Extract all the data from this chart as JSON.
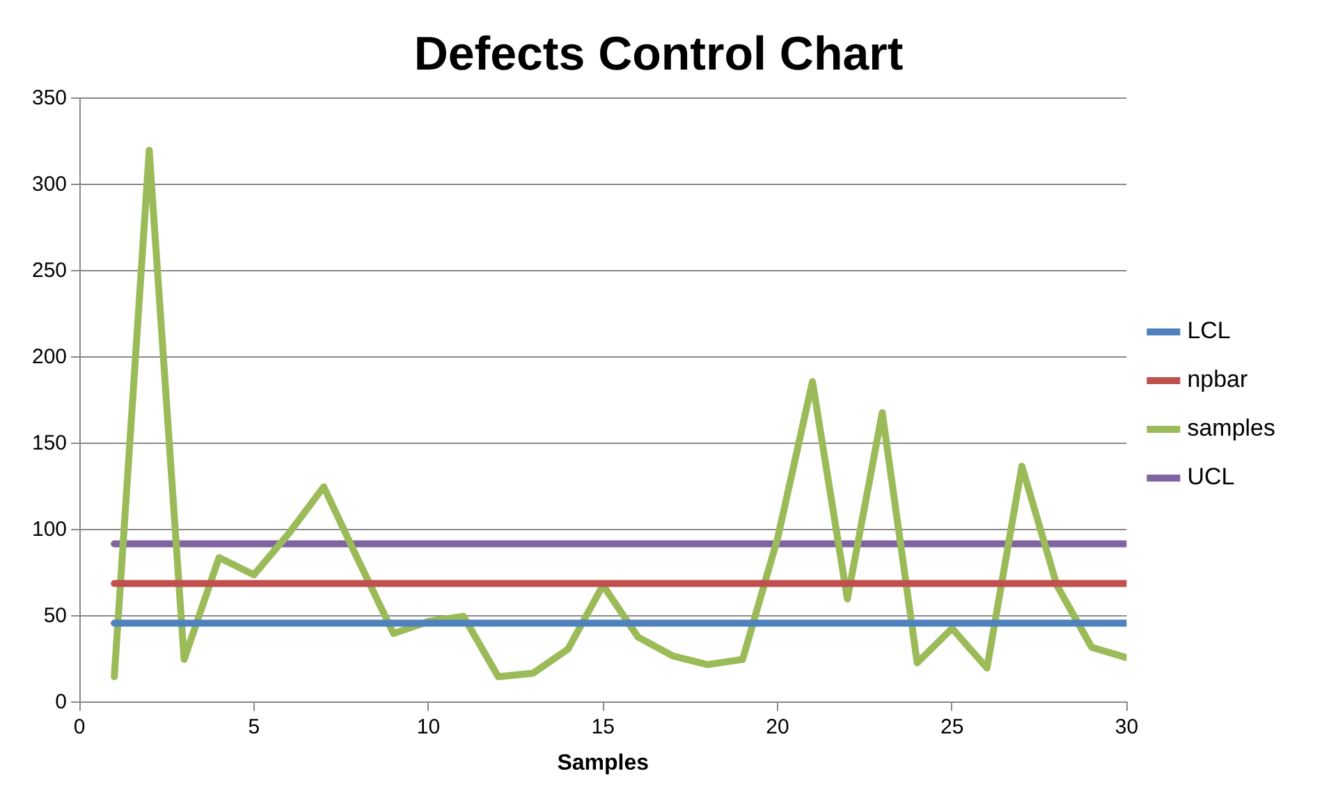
{
  "chart_data": {
    "type": "line",
    "title": "Defects Control Chart",
    "xlabel": "Samples",
    "xlim": [
      0,
      30
    ],
    "xticks": [
      0,
      5,
      10,
      15,
      20,
      25,
      30
    ],
    "ylim": [
      0,
      350
    ],
    "yticks": [
      0,
      50,
      100,
      150,
      200,
      250,
      300,
      350
    ],
    "grid": "y",
    "legend": "right",
    "marker": "none",
    "line_style": "solid",
    "series": [
      {
        "name": "LCL",
        "color": "#4f81bd",
        "x": [
          1,
          30
        ],
        "values": [
          46,
          46
        ]
      },
      {
        "name": "npbar",
        "color": "#c0504d",
        "x": [
          1,
          30
        ],
        "values": [
          69,
          69
        ]
      },
      {
        "name": "samples",
        "color": "#9bbb59",
        "x": [
          1,
          2,
          3,
          4,
          5,
          6,
          7,
          8,
          9,
          10,
          11,
          12,
          13,
          14,
          15,
          16,
          17,
          18,
          19,
          20,
          21,
          22,
          23,
          24,
          25,
          26,
          27,
          28,
          29,
          30
        ],
        "values": [
          15,
          320,
          25,
          84,
          74,
          98,
          125,
          82,
          40,
          47,
          50,
          15,
          17,
          31,
          68,
          38,
          27,
          22,
          25,
          95,
          186,
          60,
          168,
          23,
          43,
          20,
          137,
          68,
          32,
          26
        ]
      },
      {
        "name": "UCL",
        "color": "#8064a2",
        "x": [
          1,
          30
        ],
        "values": [
          92,
          92
        ]
      }
    ]
  }
}
